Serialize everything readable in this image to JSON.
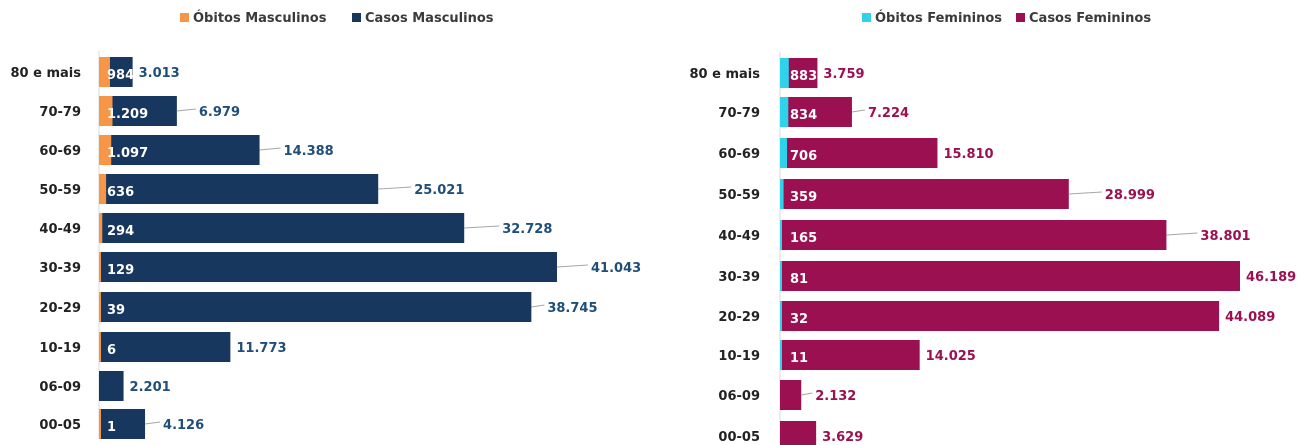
{
  "chart_data": [
    {
      "type": "bar",
      "orientation": "horizontal",
      "stacking": "overlapped",
      "legend_position": "top",
      "categories": [
        "80 e mais",
        "70-79",
        "60-69",
        "50-59",
        "40-49",
        "30-39",
        "20-29",
        "10-19",
        "06-09",
        "00-05"
      ],
      "series": [
        {
          "name": "Óbitos Masculinos",
          "color": "#f79646",
          "values": [
            984,
            1209,
            1097,
            636,
            294,
            129,
            39,
            6,
            0,
            1
          ],
          "labels": [
            "984",
            "1.209",
            "1.097",
            "636",
            "294",
            "129",
            "39",
            "6",
            "",
            "1"
          ]
        },
        {
          "name": "Casos Masculinos",
          "color": "#17375e",
          "values": [
            3013,
            6979,
            14388,
            25021,
            32728,
            41043,
            38745,
            11773,
            2201,
            4126
          ],
          "labels": [
            "3.013",
            "6.979",
            "14.388",
            "25.021",
            "32.728",
            "41.043",
            "38.745",
            "11.773",
            "2.201",
            "4.126"
          ]
        }
      ],
      "label_color": "#1f4e79"
    },
    {
      "type": "bar",
      "orientation": "horizontal",
      "stacking": "overlapped",
      "legend_position": "top",
      "categories": [
        "80 e mais",
        "70-79",
        "60-69",
        "50-59",
        "40-49",
        "30-39",
        "20-29",
        "10-19",
        "06-09",
        "00-05"
      ],
      "series": [
        {
          "name": "Óbitos Femininos",
          "color": "#2ed3eb",
          "values": [
            883,
            834,
            706,
            359,
            165,
            81,
            32,
            11,
            0,
            0
          ],
          "labels": [
            "883",
            "834",
            "706",
            "359",
            "165",
            "81",
            "32",
            "11",
            "",
            ""
          ]
        },
        {
          "name": "Casos Femininos",
          "color": "#9b1050",
          "values": [
            3759,
            7224,
            15810,
            28999,
            38801,
            46189,
            44089,
            14025,
            2132,
            3629
          ],
          "labels": [
            "3.759",
            "7.224",
            "15.810",
            "28.999",
            "38.801",
            "46.189",
            "44.089",
            "14.025",
            "2.132",
            "3.629"
          ]
        }
      ],
      "label_color": "#9b1050"
    }
  ]
}
